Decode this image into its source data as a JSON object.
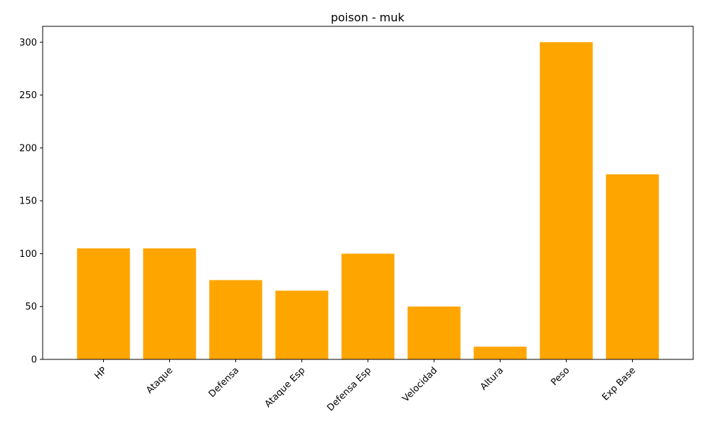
{
  "chart_data": {
    "type": "bar",
    "title": "poison - muk",
    "xlabel": "",
    "ylabel": "",
    "categories": [
      "HP",
      "Ataque",
      "Defensa",
      "Ataque Esp",
      "Defensa Esp",
      "Velocidad",
      "Altura",
      "Peso",
      "Exp Base"
    ],
    "values": [
      105,
      105,
      75,
      65,
      100,
      50,
      12,
      300,
      175
    ],
    "ylim": [
      0,
      315
    ],
    "yticks": [
      0,
      50,
      100,
      150,
      200,
      250,
      300
    ],
    "bar_color": "#ffa500",
    "grid": false,
    "legend": "none"
  }
}
